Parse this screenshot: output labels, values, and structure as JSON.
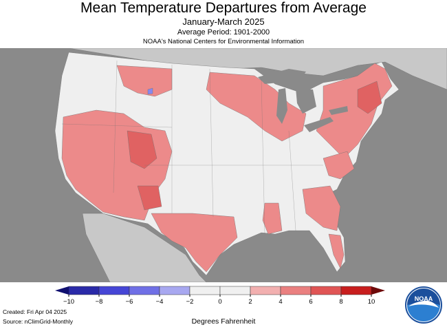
{
  "header": {
    "title": "Mean Temperature Departures from Average",
    "subtitle": "January-March 2025",
    "period": "Average Period: 1901-2000",
    "organization": "NOAA's National Centers for Environmental Information"
  },
  "legend": {
    "units": "Degrees Fahrenheit",
    "ticks": [
      "−10",
      "−8",
      "−6",
      "−4",
      "−2",
      "0",
      "2",
      "4",
      "6",
      "8",
      "10"
    ],
    "colors": [
      "#2a2aa8",
      "#4646d6",
      "#7070e6",
      "#a8a8f0",
      "#f0f0f0",
      "#f0f0f0",
      "#f2b0b0",
      "#ea8080",
      "#e05555",
      "#c81e1e"
    ],
    "arrow_low_color": "#101070",
    "arrow_high_color": "#6e0a0a"
  },
  "footer": {
    "created": "Created: Fri Apr 04 2025",
    "source": "Source: nClimGrid-Monthly"
  },
  "logo": {
    "text": "NOAA"
  },
  "map": {
    "background_color": "#8a8a8a",
    "neighbor_land_color": "#c8c8c8",
    "neutral_color": "#efefef",
    "warm_color": "#ec8a8a",
    "hot_color": "#e06262",
    "cold_color": "#8888ee",
    "lake_color": "#8a8a8a",
    "border_color": "#707070"
  }
}
